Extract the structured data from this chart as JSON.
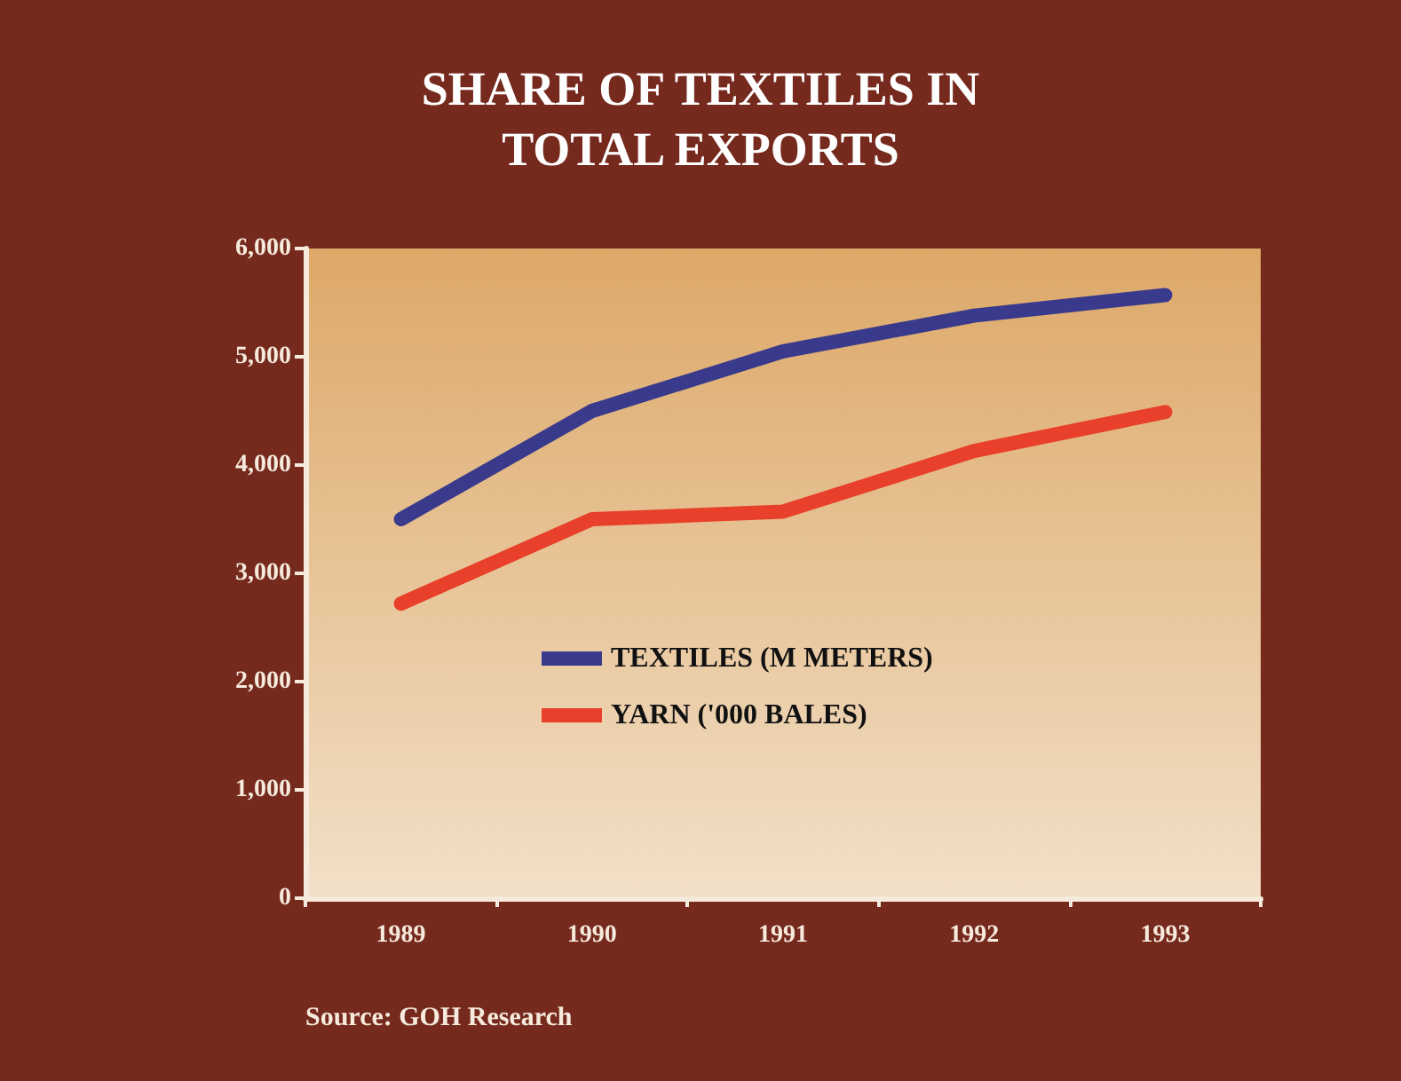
{
  "chart_data": {
    "type": "line",
    "title": "SHARE OF TEXTILES IN\nTOTAL EXPORTS",
    "categories": [
      "1989",
      "1990",
      "1991",
      "1992",
      "1993"
    ],
    "series": [
      {
        "name": "TEXTILES (M METERS)",
        "color": "#3a3a8c",
        "values": [
          3500,
          4500,
          5050,
          5380,
          5570
        ]
      },
      {
        "name": "YARN ('000 BALES)",
        "color": "#e8402a",
        "values": [
          2720,
          3500,
          3570,
          4130,
          4490
        ]
      }
    ],
    "ylim": [
      0,
      6000
    ],
    "yticks": [
      0,
      {
        "value": 1000,
        "label": "1,000"
      },
      {
        "value": 2000,
        "label": "2,000"
      },
      {
        "value": 3000,
        "label": "3,000"
      },
      {
        "value": 4000,
        "label": "4,000"
      },
      {
        "value": 5000,
        "label": "5,000"
      },
      {
        "value": 6000,
        "label": "6,000"
      }
    ],
    "grid": false,
    "legend": "center",
    "marker": "none",
    "line_style": "solid",
    "annotations": [
      "Source: GOH Research"
    ]
  }
}
